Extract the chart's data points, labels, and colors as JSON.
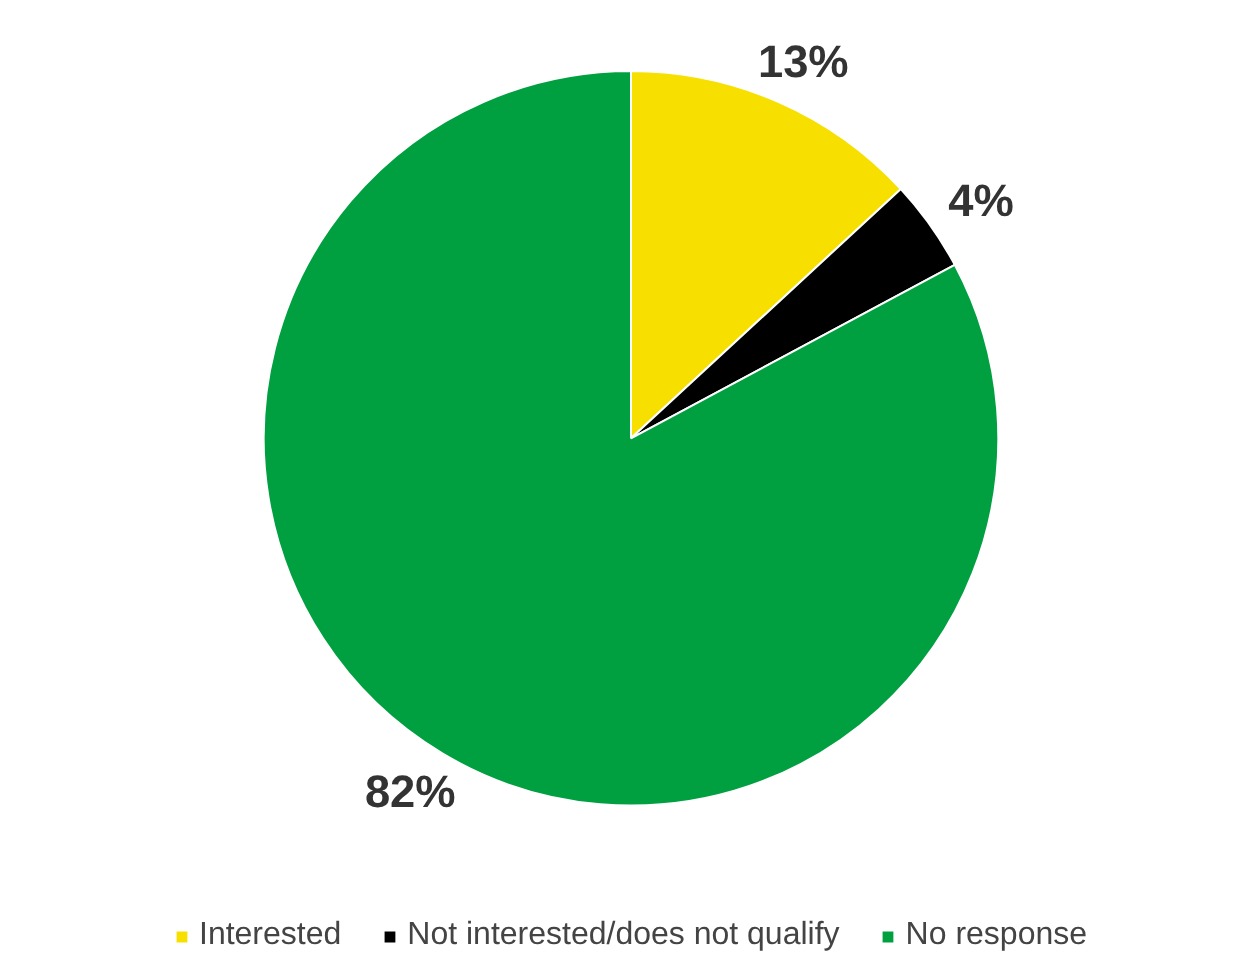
{
  "chart_data": {
    "type": "pie",
    "categories": [
      "Interested",
      "Not interested/does not qualify",
      "No response"
    ],
    "values": [
      13,
      4,
      82
    ],
    "colors": [
      "#f7e000",
      "#000000",
      "#00a040"
    ],
    "value_labels": [
      "13%",
      "4%",
      "82%"
    ],
    "legend": "bottom"
  }
}
